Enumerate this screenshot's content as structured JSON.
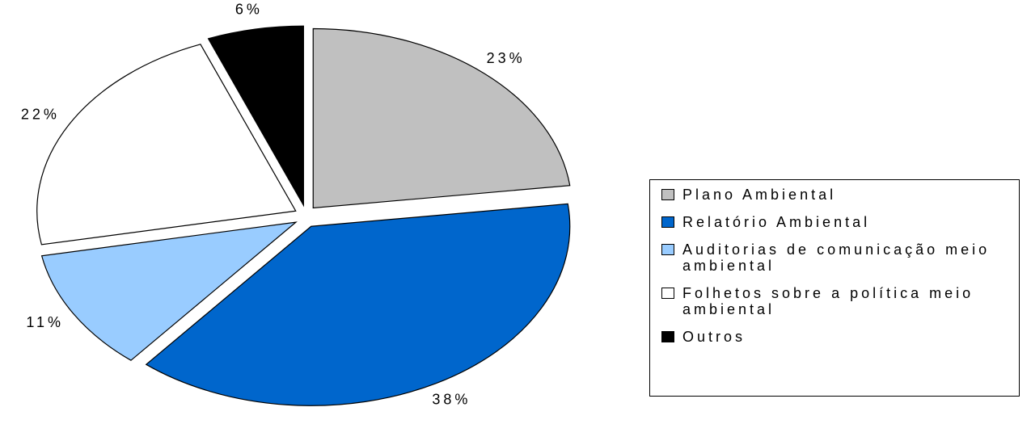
{
  "chart_data": {
    "type": "pie",
    "categories": [
      "Plano Ambiental",
      "Relatório Ambiental",
      "Auditorias de comunicação meio ambiental",
      "Folhetos sobre a política meio ambiental",
      "Outros"
    ],
    "values": [
      23,
      38,
      11,
      22,
      6
    ],
    "value_labels": [
      "23%",
      "38%",
      "11%",
      "22%",
      "6%"
    ],
    "colors": [
      "#c0c0c0",
      "#0066cc",
      "#99ccff",
      "#ffffff",
      "#000000"
    ],
    "legend": "right"
  }
}
